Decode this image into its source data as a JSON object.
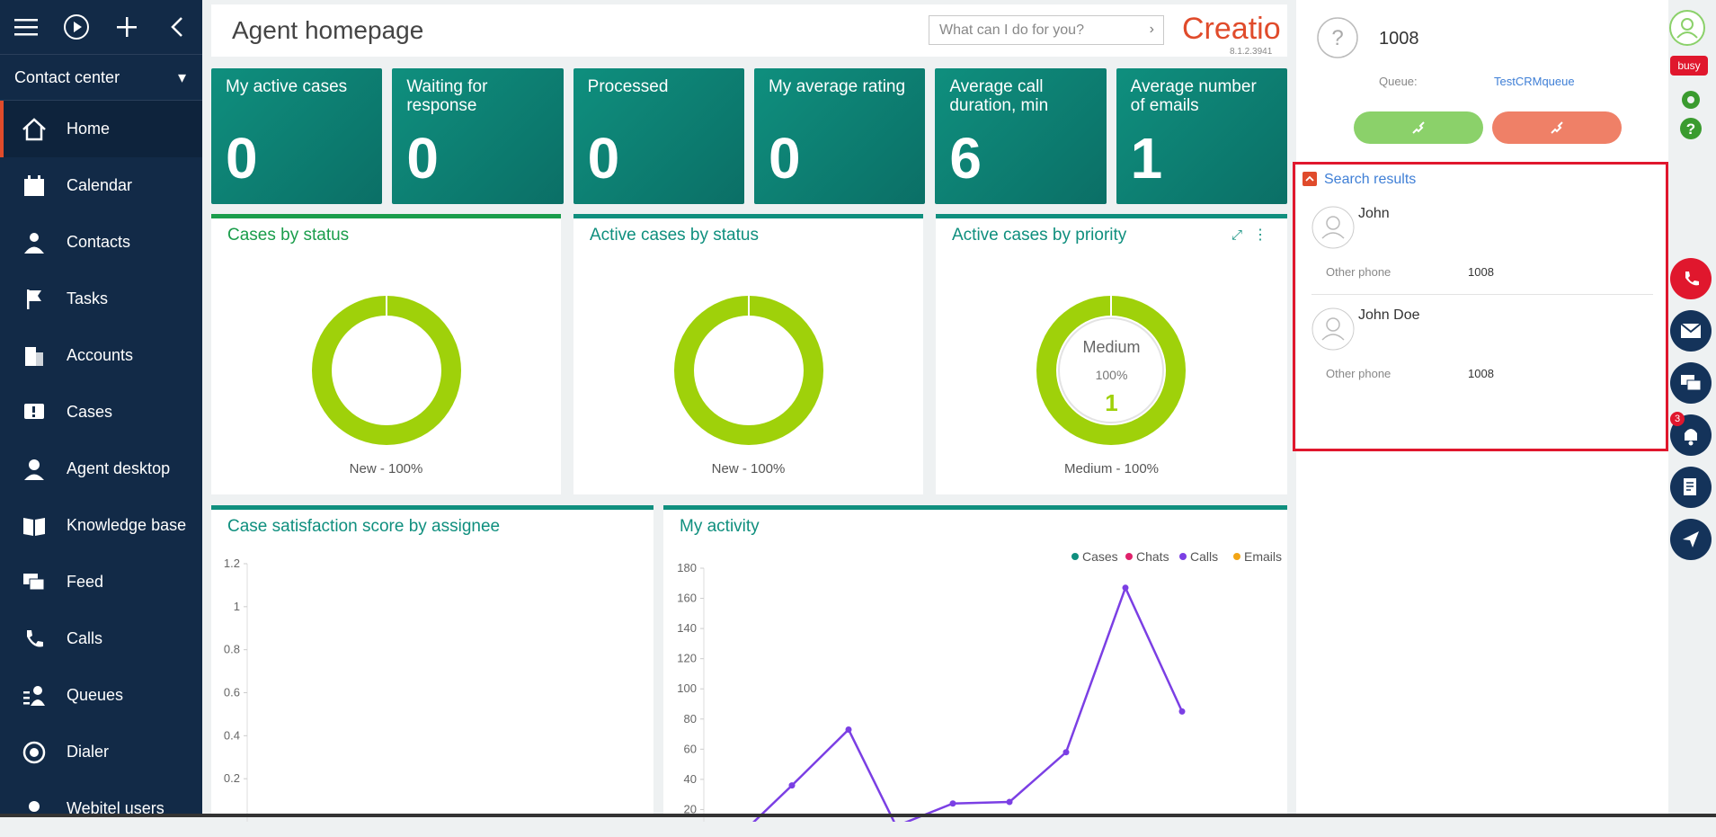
{
  "sidebar": {
    "workplace": "Contact center",
    "items": [
      {
        "label": "Home",
        "icon": "home-icon",
        "active": true
      },
      {
        "label": "Calendar",
        "icon": "calendar-icon"
      },
      {
        "label": "Contacts",
        "icon": "person-icon"
      },
      {
        "label": "Tasks",
        "icon": "flag-icon"
      },
      {
        "label": "Accounts",
        "icon": "building-icon"
      },
      {
        "label": "Cases",
        "icon": "case-icon"
      },
      {
        "label": "Agent desktop",
        "icon": "agent-icon"
      },
      {
        "label": "Knowledge base",
        "icon": "book-icon"
      },
      {
        "label": "Feed",
        "icon": "chat-icon"
      },
      {
        "label": "Calls",
        "icon": "phone-icon"
      },
      {
        "label": "Queues",
        "icon": "queue-icon"
      },
      {
        "label": "Dialer",
        "icon": "dialer-icon"
      },
      {
        "label": "Webitel users",
        "icon": "users-icon"
      }
    ]
  },
  "header": {
    "title": "Agent homepage",
    "search_placeholder": "What can I do for you?",
    "logo": "Creatio",
    "version": "8.1.2.3941"
  },
  "tiles": [
    {
      "label": "My active cases",
      "value": "0"
    },
    {
      "label": "Waiting for response",
      "value": "0"
    },
    {
      "label": "Processed",
      "value": "0"
    },
    {
      "label": "My average rating",
      "value": "0"
    },
    {
      "label": "Average call duration, min",
      "value": "6"
    },
    {
      "label": "Average number of emails",
      "value": "1"
    }
  ],
  "widgets": {
    "cases_by_status": {
      "title": "Cases by status",
      "legend": "New - 100%"
    },
    "active_by_status": {
      "title": "Active cases by status",
      "legend": "New - 100%"
    },
    "active_by_priority": {
      "title": "Active cases by priority",
      "legend": "Medium - 100%",
      "center_label": "Medium",
      "center_pct": "100%",
      "center_val": "1"
    },
    "satisfaction": {
      "title": "Case satisfaction score by assignee"
    },
    "activity": {
      "title": "My activity"
    }
  },
  "chart_data": [
    {
      "type": "bar",
      "title": "Case satisfaction score by assignee",
      "ylim": [
        0,
        1.2
      ],
      "yticks": [
        "1.2",
        "1",
        "0.8",
        "0.6",
        "0.4",
        "0.2"
      ],
      "series": []
    },
    {
      "type": "line",
      "title": "My activity",
      "legend": [
        "Cases",
        "Chats",
        "Calls",
        "Emails"
      ],
      "legend_colors": [
        "#0f8f7e",
        "#e0216b",
        "#7b3fe4",
        "#f2a516"
      ],
      "yticks": [
        "180",
        "160",
        "140",
        "120",
        "100",
        "80",
        "60",
        "40",
        "20"
      ],
      "ylim": [
        0,
        180
      ],
      "series": [
        {
          "name": "Calls",
          "color": "#7b3fe4",
          "values": [
            0,
            36,
            73,
            9,
            24,
            25,
            58,
            167,
            85
          ]
        }
      ]
    }
  ],
  "right": {
    "number": "1008",
    "queue_label": "Queue:",
    "queue_value": "TestCRMqueue",
    "results_title": "Search results",
    "contacts": [
      {
        "name": "John",
        "phone_label": "Other phone",
        "phone": "1008"
      },
      {
        "name": "John Doe",
        "phone_label": "Other phone",
        "phone": "1008"
      }
    ]
  },
  "tools": {
    "status": "busy",
    "notif_count": "3"
  }
}
